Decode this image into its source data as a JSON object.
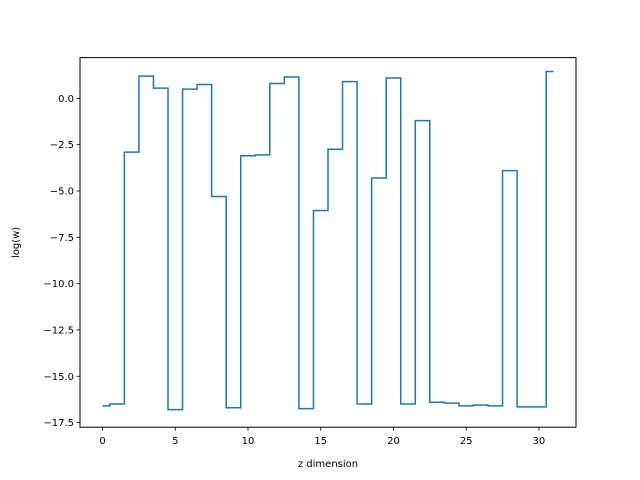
{
  "chart_data": {
    "type": "line",
    "drawstyle": "steps-mid",
    "xlabel": "z dimension",
    "ylabel": "log(w)",
    "xlim": [
      -1.55,
      32.55
    ],
    "ylim": [
      -17.75,
      2.2
    ],
    "xticks": [
      0,
      5,
      10,
      15,
      20,
      25,
      30
    ],
    "xtick_labels": [
      "0",
      "5",
      "10",
      "15",
      "20",
      "25",
      "30"
    ],
    "yticks": [
      0.0,
      -2.5,
      -5.0,
      -7.5,
      -10.0,
      -12.5,
      -15.0,
      -17.5
    ],
    "ytick_labels": [
      "0.0",
      "−2.5",
      "−5.0",
      "−7.5",
      "−10.0",
      "−12.5",
      "−15.0",
      "−17.5"
    ],
    "grid": false,
    "line_color": "#1f77b4",
    "series": [
      {
        "x": [
          0,
          1,
          2,
          3,
          4,
          5,
          6,
          7,
          8,
          9,
          10,
          11,
          12,
          13,
          14,
          15,
          16,
          17,
          18,
          19,
          20,
          21,
          22,
          23,
          24,
          25,
          26,
          27,
          28,
          29,
          30,
          31
        ],
        "values": [
          -16.6,
          -16.5,
          -2.9,
          1.2,
          0.55,
          -16.8,
          0.5,
          0.75,
          -5.3,
          -16.7,
          -3.1,
          -3.05,
          0.8,
          1.15,
          -16.75,
          -6.05,
          -2.75,
          0.9,
          -16.5,
          -4.3,
          1.1,
          -16.5,
          -1.2,
          -16.4,
          -16.45,
          -16.6,
          -16.55,
          -16.6,
          -3.9,
          -16.65,
          -16.65,
          1.45
        ]
      }
    ]
  }
}
